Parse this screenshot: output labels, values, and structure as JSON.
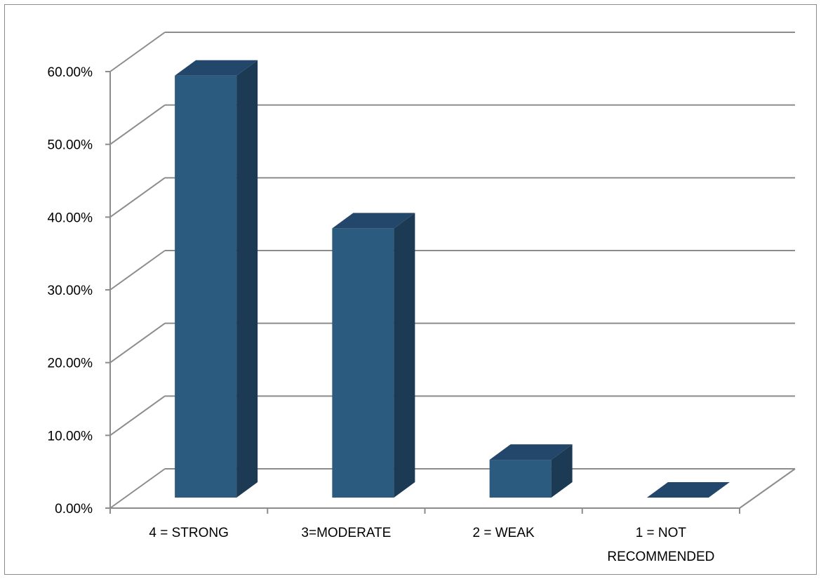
{
  "chart_data": {
    "type": "bar",
    "variant": "3d-column",
    "title": "",
    "xlabel": "",
    "ylabel": "",
    "categories": [
      "4 = STRONG",
      "3=MODERATE",
      "2 = WEAK",
      "1 = NOT RECOMMENDED"
    ],
    "category_lines": [
      [
        "4 = STRONG"
      ],
      [
        "3=MODERATE"
      ],
      [
        "2 = WEAK"
      ],
      [
        "1 = NOT",
        "RECOMMENDED"
      ]
    ],
    "values": [
      0.58,
      0.37,
      0.052,
      0.0
    ],
    "ylim": [
      0,
      0.6
    ],
    "yticks": [
      0,
      0.1,
      0.2,
      0.3,
      0.4,
      0.5,
      0.6
    ],
    "ytick_labels": [
      "0.00%",
      "10.00%",
      "20.00%",
      "30.00%",
      "40.00%",
      "50.00%",
      "60.00%"
    ],
    "grid": true,
    "legend": "none",
    "colors": {
      "bar_front": "#2b5b7e",
      "bar_side": "#1c3a53",
      "bar_top": "#23476a",
      "grid": "#8c8c8c",
      "axis": "#8c8c8c"
    }
  }
}
